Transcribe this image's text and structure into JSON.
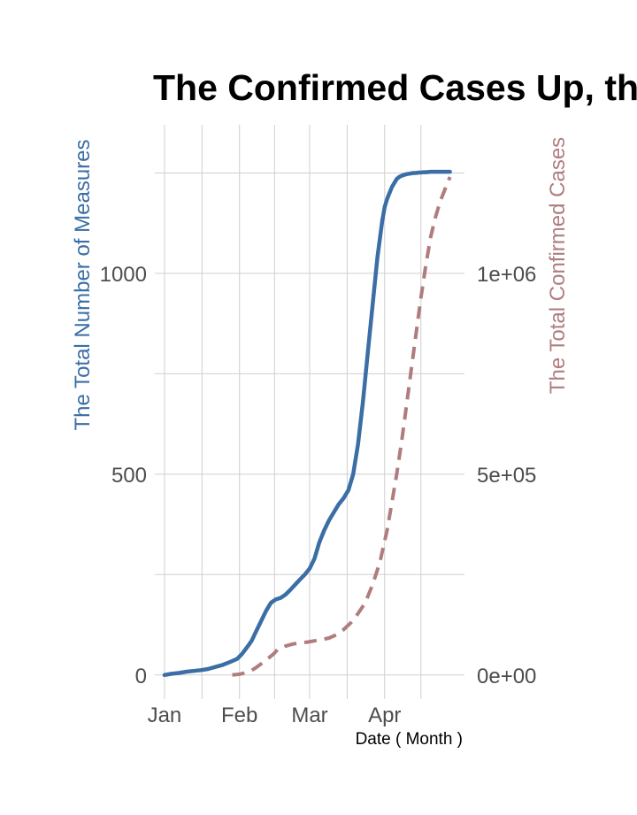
{
  "chart_data": {
    "type": "line",
    "title": "The Confirmed Cases Up, the",
    "xlabel": "Date ( Month )",
    "ylabel_left": "The Total Number of Measures",
    "ylabel_right": "The Total Confirmed Cases",
    "x_ticks": [
      "Jan",
      "Feb",
      "Mar",
      "Apr"
    ],
    "y_left_ticks": [
      "0",
      "500",
      "1000"
    ],
    "y_right_ticks": [
      "0e+00",
      "5e+05",
      "1e+06"
    ],
    "y_left_range": [
      -60,
      1370
    ],
    "y_right_range": [
      -60000,
      1370000
    ],
    "grid": true,
    "colors": {
      "measures": "#3a6ea5",
      "cases": "#b07d7e"
    },
    "series": [
      {
        "name": "The Total Number of Measures",
        "axis": "left",
        "style": "solid",
        "x": [
          0,
          3,
          6,
          9,
          12,
          15,
          18,
          21,
          24,
          27,
          30,
          32,
          34,
          36,
          38,
          40,
          42,
          44,
          46,
          48,
          50,
          52,
          54,
          56,
          58,
          60,
          62,
          64,
          66,
          68,
          70,
          72,
          74,
          76,
          78,
          80,
          82,
          84,
          86,
          88,
          90,
          91,
          92,
          93,
          94,
          95,
          96,
          97,
          98,
          99,
          100,
          101,
          102,
          103,
          104,
          105,
          106,
          107,
          108,
          110,
          112,
          114,
          116,
          118
        ],
        "y": [
          0,
          3,
          5,
          8,
          10,
          12,
          15,
          20,
          25,
          32,
          40,
          52,
          68,
          85,
          110,
          135,
          160,
          180,
          188,
          192,
          200,
          212,
          225,
          238,
          250,
          265,
          290,
          330,
          360,
          385,
          405,
          425,
          440,
          460,
          500,
          575,
          680,
          800,
          920,
          1040,
          1130,
          1165,
          1185,
          1200,
          1215,
          1225,
          1235,
          1240,
          1243,
          1245,
          1247,
          1248,
          1249,
          1250,
          1250,
          1251,
          1251,
          1252,
          1252,
          1253,
          1253,
          1253,
          1253,
          1253
        ]
      },
      {
        "name": "The Total Confirmed Cases",
        "axis": "right",
        "style": "dashed",
        "x": [
          28,
          31,
          34,
          37,
          40,
          43,
          45,
          47,
          50,
          53,
          56,
          59,
          62,
          65,
          68,
          71,
          74,
          77,
          80,
          83,
          86,
          89,
          92,
          94,
          96,
          98,
          100,
          102,
          104,
          106,
          108,
          110,
          112,
          114,
          116,
          118
        ],
        "y": [
          0,
          2000,
          6000,
          15000,
          28000,
          42000,
          52000,
          65000,
          72000,
          77000,
          80000,
          82000,
          85000,
          88000,
          92000,
          100000,
          113000,
          130000,
          153000,
          180000,
          225000,
          280000,
          360000,
          430000,
          500000,
          580000,
          670000,
          760000,
          850000,
          940000,
          1020000,
          1090000,
          1140000,
          1180000,
          1210000,
          1240000
        ]
      }
    ]
  }
}
